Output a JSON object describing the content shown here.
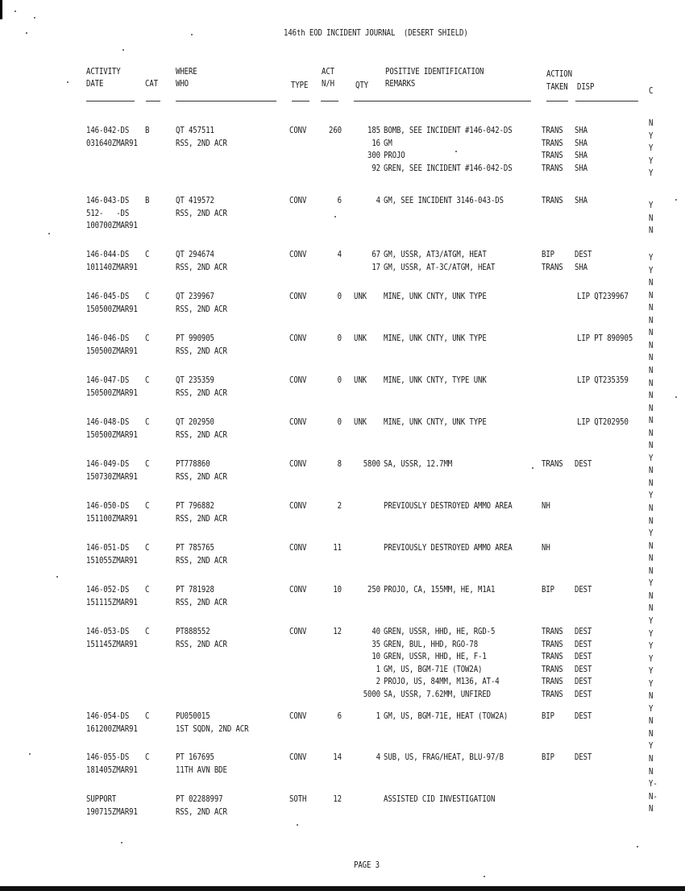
{
  "title": "146th EOD INCIDENT JOURNAL  (DESERT SHIELD)",
  "headers": {
    "activity": "ACTIVITY",
    "date": "DATE",
    "cat": "CAT",
    "where": "WHERE",
    "who": "WHO",
    "type": "TYPE",
    "act": "ACT",
    "nh": "N/H",
    "qty": "QTY",
    "posid": "POSITIVE IDENTIFICATION",
    "remarks": "REMARKS",
    "action": "ACTION",
    "taken": "TAKEN",
    "disp": "DISP",
    "c": "C"
  },
  "rows": [
    {
      "date": "146-042-DS",
      "date2": "031640ZMAR91",
      "date3": "",
      "cat": "B",
      "where": "QT 457511",
      "who": "RSS, 2ND ACR",
      "type": "CONV",
      "act": "260",
      "lines": [
        [
          "185",
          "BOMB, SEE INCIDENT #146-042-DS",
          "TRANS",
          "SHA"
        ],
        [
          "16",
          "GM",
          "TRANS",
          "SHA"
        ],
        [
          "300",
          "PROJO",
          "TRANS",
          "SHA"
        ],
        [
          "92",
          "GREN, SEE INCIDENT #146-042-DS",
          "TRANS",
          "SHA"
        ]
      ]
    },
    {
      "date": "146-043-DS",
      "date2": "512-   -DS",
      "date3": "100700ZMAR91",
      "cat": "B",
      "where": "QT 419572",
      "who": "RSS, 2ND ACR",
      "type": "CONV",
      "act": "6",
      "lines": [
        [
          "4",
          "GM, SEE INCIDENT 3146-043-DS",
          "TRANS",
          "SHA"
        ]
      ]
    },
    {
      "date": "146-044-DS",
      "date2": "101140ZMAR91",
      "date3": "",
      "cat": "C",
      "where": "QT 294674",
      "who": "RSS, 2ND ACR",
      "type": "CONV",
      "act": "4",
      "lines": [
        [
          "67",
          "GM, USSR, AT3/ATGM, HEAT",
          "BIP",
          "DEST"
        ],
        [
          "17",
          "GM, USSR, AT-3C/ATGM, HEAT",
          "TRANS",
          "SHA"
        ]
      ]
    },
    {
      "date": "146-045-DS",
      "date2": "150500ZMAR91",
      "date3": "",
      "cat": "C",
      "where": "QT 239967",
      "who": "RSS, 2ND ACR",
      "type": "CONV",
      "act": "0",
      "lines": [
        [
          "UNK",
          "MINE, UNK CNTY, UNK TYPE",
          "",
          "LIP QT239967"
        ]
      ]
    },
    {
      "date": "146-046-DS",
      "date2": "150500ZMAR91",
      "date3": "",
      "cat": "C",
      "where": "PT 990905",
      "who": "RSS, 2ND ACR",
      "type": "CONV",
      "act": "0",
      "lines": [
        [
          "UNK",
          "MINE, UNK CNTY, UNK TYPE",
          "",
          "LIP PT 890905"
        ]
      ]
    },
    {
      "date": "146-047-DS",
      "date2": "150500ZMAR91",
      "date3": "",
      "cat": "C",
      "where": "QT 235359",
      "who": "RSS, 2ND ACR",
      "type": "CONV",
      "act": "0",
      "lines": [
        [
          "UNK",
          "MINE, UNK CNTY, TYPE UNK",
          "",
          "LIP QT235359"
        ]
      ]
    },
    {
      "date": "146-048-DS",
      "date2": "150500ZMAR91",
      "date3": "",
      "cat": "C",
      "where": "QT 202950",
      "who": "RSS, 2ND ACR",
      "type": "CONV",
      "act": "0",
      "lines": [
        [
          "UNK",
          "MINE, UNK CNTY, UNK TYPE",
          "",
          "LIP QT202950"
        ]
      ]
    },
    {
      "date": "146-049-DS",
      "date2": "150730ZMAR91",
      "date3": "",
      "cat": "C",
      "where": "PT778860",
      "who": "RSS, 2ND ACR",
      "type": "CONV",
      "act": "8",
      "lines": [
        [
          "5800",
          "SA, USSR, 12.7MM",
          "TRANS",
          "DEST"
        ]
      ]
    },
    {
      "date": "146-050-DS",
      "date2": "151100ZMAR91",
      "date3": "",
      "cat": "C",
      "where": "PT 796882",
      "who": "RSS, 2ND ACR",
      "type": "CONV",
      "act": "2",
      "lines": [
        [
          "",
          "PREVIOUSLY DESTROYED AMMO AREA",
          "NH",
          ""
        ]
      ]
    },
    {
      "date": "146-051-DS",
      "date2": "151055ZMAR91",
      "date3": "",
      "cat": "C",
      "where": "PT 785765",
      "who": "RSS, 2ND ACR",
      "type": "CONV",
      "act": "11",
      "lines": [
        [
          "",
          "PREVIOUSLY DESTROYED AMMO AREA",
          "NH",
          ""
        ]
      ]
    },
    {
      "date": "146-052-DS",
      "date2": "151115ZMAR91",
      "date3": "",
      "cat": "C",
      "where": "PT 781928",
      "who": "RSS, 2ND ACR",
      "type": "CONV",
      "act": "10",
      "lines": [
        [
          "250",
          "PROJO, CA, 155MM, HE, M1A1",
          "BIP",
          "DEST"
        ]
      ]
    },
    {
      "date": "146-053-DS",
      "date2": "151145ZMAR91",
      "date3": "",
      "cat": "C",
      "where": "PT888552",
      "who": "RSS, 2ND ACR",
      "type": "CONV",
      "act": "12",
      "lines": [
        [
          "40",
          "GREN, USSR, HHD, HE, RGD-5",
          "TRANS",
          "DEST"
        ],
        [
          "35",
          "GREN, BUL, HHD, RGO-78",
          "TRANS",
          "DEST"
        ],
        [
          "10",
          "GREN, USSR, HHD, HE, F-1",
          "TRANS",
          "DEST"
        ],
        [
          "1",
          "GM, US, BGM-71E (TOW2A)",
          "TRANS",
          "DEST"
        ],
        [
          "2",
          "PROJO, US, 84MM, M136, AT-4",
          "TRANS",
          "DEST"
        ],
        [
          "5000",
          "SA, USSR, 7.62MM, UNFIRED",
          "TRANS",
          "DEST"
        ]
      ]
    },
    {
      "date": "146-054-DS",
      "date2": "161200ZMAR91",
      "date3": "",
      "cat": "C",
      "where": "PU050015",
      "who": "1ST SQDN, 2ND ACR",
      "type": "CONV",
      "act": "6",
      "lines": [
        [
          "1",
          "GM, US, BGM-71E, HEAT (TOW2A)",
          "BIP",
          "DEST"
        ]
      ]
    },
    {
      "date": "146-055-DS",
      "date2": "181405ZMAR91",
      "date3": "",
      "cat": "C",
      "where": "PT 167695",
      "who": "11TH AVN BDE",
      "type": "CONV",
      "act": "14",
      "lines": [
        [
          "4",
          "SUB, US, FRAG/HEAT, BLU-97/B",
          "BIP",
          "DEST"
        ]
      ]
    },
    {
      "date": "SUPPORT",
      "date2": "190715ZMAR91",
      "date3": "",
      "cat": "",
      "where": "PT 02288997",
      "who": "RSS, 2ND ACR",
      "type": "SOTH",
      "act": "12",
      "lines": [
        [
          "",
          "ASSISTED CID INVESTIGATION",
          "",
          ""
        ]
      ]
    }
  ],
  "c_column": [
    [
      "N",
      "Y",
      "Y",
      "Y",
      "Y"
    ],
    [
      "Y",
      "N",
      "N"
    ],
    [
      "Y",
      "Y",
      "N",
      "N",
      "N",
      "N",
      "N",
      "N",
      "N",
      "N",
      "N",
      "N",
      "N",
      "N",
      "N",
      "N",
      "Y",
      "N",
      "N",
      "Y",
      "N",
      "N",
      "Y",
      "N",
      "N",
      "N",
      "Y",
      "N",
      "N",
      "Y",
      "Y",
      "Y",
      "Y",
      "Y",
      "Y",
      "N",
      "Y",
      "N",
      "N",
      "Y",
      "N",
      "N",
      "Y-",
      "N-",
      "N"
    ]
  ],
  "footer": {
    "page": "PAGE 3"
  }
}
